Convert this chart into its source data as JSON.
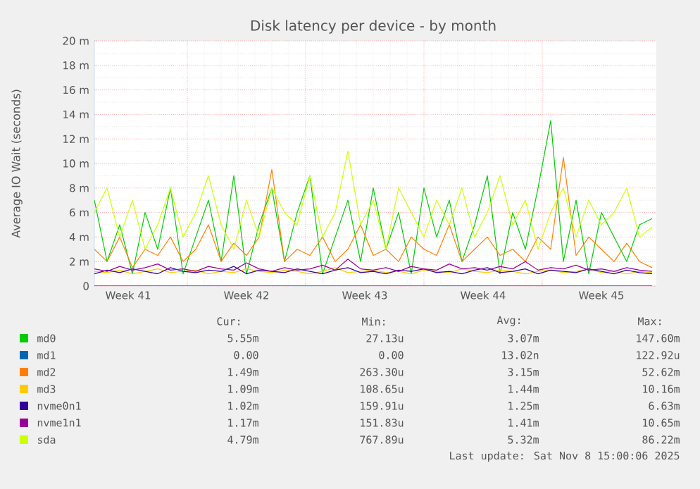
{
  "chart_data": {
    "type": "line",
    "title": "Disk latency per device - by month",
    "ylabel": "Average IO Wait (seconds)",
    "x": [
      "2025-10-07T12:00",
      "2025-10-08T06:00",
      "2025-10-09T00:00",
      "2025-10-09T18:00",
      "2025-10-10T12:00",
      "2025-10-11T06:00",
      "2025-10-12T00:00",
      "2025-10-12T18:00",
      "2025-10-13T12:00",
      "2025-10-14T06:00",
      "2025-10-15T00:00",
      "2025-10-15T18:00",
      "2025-10-16T12:00",
      "2025-10-17T06:00",
      "2025-10-18T00:00",
      "2025-10-18T18:00",
      "2025-10-19T12:00",
      "2025-10-20T06:00",
      "2025-10-21T00:00",
      "2025-10-21T18:00",
      "2025-10-22T12:00",
      "2025-10-23T06:00",
      "2025-10-24T00:00",
      "2025-10-24T18:00",
      "2025-10-25T12:00",
      "2025-10-26T06:00",
      "2025-10-27T00:00",
      "2025-10-27T18:00",
      "2025-10-28T12:00",
      "2025-10-29T06:00",
      "2025-10-30T00:00",
      "2025-10-30T18:00",
      "2025-10-31T12:00",
      "2025-11-01T06:00",
      "2025-11-02T00:00",
      "2025-11-02T18:00",
      "2025-11-03T12:00",
      "2025-11-04T06:00",
      "2025-11-05T00:00",
      "2025-11-05T18:00",
      "2025-11-06T12:00",
      "2025-11-07T06:00",
      "2025-11-08T00:00",
      "2025-11-08T18:00",
      "2025-11-09T12:00"
    ],
    "xlim": [
      "2025-10-07T12:00",
      "2025-11-09T18:00"
    ],
    "xticks": [
      {
        "value": "2025-10-09T12:00",
        "label": "Week 41"
      },
      {
        "value": "2025-10-13",
        "label": null
      },
      {
        "value": "2025-10-16T12:00",
        "label": "Week 42"
      },
      {
        "value": "2025-10-20",
        "label": null
      },
      {
        "value": "2025-10-23T12:00",
        "label": "Week 43"
      },
      {
        "value": "2025-10-27",
        "label": null
      },
      {
        "value": "2025-10-30T12:00",
        "label": "Week 44"
      },
      {
        "value": "2025-11-03",
        "label": null
      },
      {
        "value": "2025-11-06T12:00",
        "label": "Week 45"
      }
    ],
    "ylim": [
      0,
      20
    ],
    "yticks": [
      0,
      {
        "value": 2,
        "label": "2 m"
      },
      {
        "value": 4,
        "label": "4 m"
      },
      {
        "value": 6,
        "label": "6 m"
      },
      {
        "value": 8,
        "label": "8 m"
      },
      {
        "value": 10,
        "label": "10 m"
      },
      {
        "value": 12,
        "label": "12 m"
      },
      {
        "value": 14,
        "label": "14 m"
      },
      {
        "value": 16,
        "label": "16 m"
      },
      {
        "value": 18,
        "label": "18 m"
      },
      {
        "value": 20,
        "label": "20 m"
      }
    ],
    "grid": true,
    "legend": "bottom",
    "series": [
      {
        "name": "md0",
        "color": "#00cc00",
        "values": [
          7,
          2,
          5,
          1,
          6,
          3,
          8,
          1,
          4,
          7,
          2,
          9,
          1,
          5,
          8,
          2,
          6,
          9,
          1,
          4,
          7,
          2,
          8,
          3,
          6,
          1,
          8,
          4,
          7,
          2,
          5,
          9,
          1,
          6,
          3,
          8,
          13.5,
          2,
          7,
          1,
          6,
          4,
          2,
          5,
          5.5
        ]
      },
      {
        "name": "md1",
        "color": "#0066b3",
        "values": [
          0,
          0,
          0,
          0,
          0,
          0,
          0,
          0,
          0,
          0,
          0,
          0,
          0,
          0,
          0,
          0,
          0,
          0,
          0,
          0,
          0,
          0,
          0,
          0,
          0,
          0,
          0,
          0,
          0,
          0,
          0,
          0,
          0,
          0,
          0,
          0,
          0,
          0,
          0,
          0,
          0,
          0,
          0,
          0,
          0
        ]
      },
      {
        "name": "md2",
        "color": "#ff8000",
        "values": [
          3,
          2,
          4,
          1.5,
          3,
          2.5,
          4,
          2,
          3,
          5,
          2,
          3.5,
          2.5,
          4,
          9.5,
          2,
          3,
          2.5,
          4,
          2,
          3,
          5,
          2.5,
          3,
          2,
          4,
          3,
          2.5,
          5,
          2,
          3,
          4,
          2.5,
          3,
          2,
          4,
          3,
          10.5,
          2.5,
          4,
          3,
          2,
          3.5,
          2,
          1.5
        ]
      },
      {
        "name": "md3",
        "color": "#ffcc00",
        "values": [
          1.2,
          1.1,
          1.3,
          1.0,
          1.2,
          1.4,
          1.1,
          1.2,
          1.3,
          1.0,
          1.2,
          1.1,
          1.4,
          1.2,
          1.1,
          1.3,
          1.2,
          1.0,
          1.2,
          1.5,
          1.1,
          1.2,
          1.3,
          1.1,
          1.2,
          1.0,
          1.3,
          1.2,
          1.1,
          1.4,
          1.2,
          1.1,
          1.3,
          1.2,
          1.0,
          1.2,
          1.3,
          1.1,
          1.2,
          1.4,
          1.1,
          1.2,
          1.0,
          1.2,
          1.1
        ]
      },
      {
        "name": "nvme0n1",
        "color": "#330099",
        "values": [
          1.0,
          1.3,
          1.1,
          1.4,
          1.2,
          1.0,
          1.5,
          1.2,
          1.1,
          1.3,
          1.2,
          1.6,
          1.0,
          1.3,
          1.2,
          1.1,
          1.4,
          1.2,
          1.0,
          1.3,
          1.5,
          1.1,
          1.2,
          1.0,
          1.3,
          1.2,
          1.4,
          1.1,
          1.2,
          1.0,
          1.3,
          1.5,
          1.1,
          1.2,
          1.4,
          1.0,
          1.3,
          1.2,
          1.1,
          1.4,
          1.2,
          1.0,
          1.3,
          1.1,
          1.0
        ]
      },
      {
        "name": "nvme1n1",
        "color": "#990099",
        "values": [
          1.4,
          1.2,
          1.6,
          1.3,
          1.5,
          1.8,
          1.3,
          1.4,
          1.2,
          1.6,
          1.4,
          1.3,
          1.9,
          1.4,
          1.2,
          1.5,
          1.3,
          1.4,
          1.7,
          1.3,
          2.2,
          1.4,
          1.3,
          1.5,
          1.2,
          1.6,
          1.4,
          1.3,
          1.8,
          1.4,
          1.5,
          1.3,
          1.6,
          1.4,
          2.0,
          1.3,
          1.5,
          1.4,
          1.7,
          1.3,
          1.4,
          1.2,
          1.5,
          1.3,
          1.2
        ]
      },
      {
        "name": "sda",
        "color": "#ccff00",
        "values": [
          6,
          8,
          4,
          7,
          3,
          5,
          8,
          4,
          6,
          9,
          5,
          3,
          7,
          4,
          8,
          6,
          5,
          9,
          4,
          6,
          11,
          5,
          7,
          3,
          8,
          6,
          4,
          7,
          5,
          8,
          4,
          6,
          9,
          5,
          7,
          3,
          6,
          8,
          4,
          7,
          5,
          6,
          8,
          4,
          4.8
        ]
      }
    ],
    "annotations": [
      "Cur:",
      "Min:",
      "Avg:",
      "Max:",
      "5.55m",
      "27.13u",
      "3.07m",
      "147.60m",
      "0.00",
      "0.00",
      "13.02n",
      "122.92u",
      "1.49m",
      "263.30u",
      "3.15m",
      "52.62m",
      "1.09m",
      "108.65u",
      "1.44m",
      "10.16m",
      "1.02m",
      "159.91u",
      "1.25m",
      "6.63m",
      "1.17m",
      "151.83u",
      "1.41m",
      "10.65m",
      "4.79m",
      "767.89u",
      "5.32m",
      "86.22m",
      "Last update: Sat Nov  8 15:00:06 2025"
    ]
  }
}
